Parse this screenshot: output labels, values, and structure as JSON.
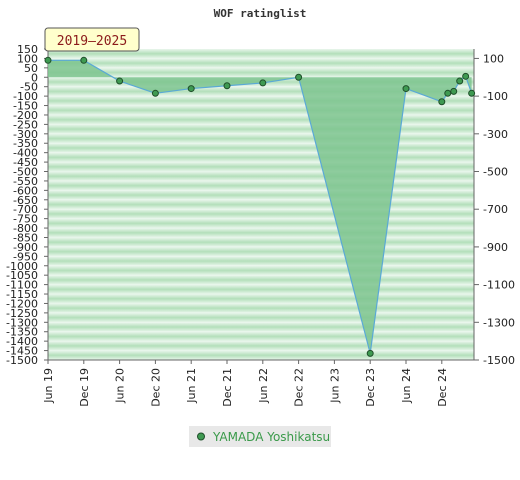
{
  "chart_data": {
    "type": "area",
    "title": "WOF ratinglist",
    "period_label": "2019–2025",
    "x_tick_labels": [
      "Jun 19",
      "Dec 19",
      "Jun 20",
      "Dec 20",
      "Jun 21",
      "Dec 21",
      "Jun 22",
      "Dec 22",
      "Jun 23",
      "Dec 23",
      "Jun 24",
      "Dec 24"
    ],
    "left_axis": {
      "ylim": [
        -1500,
        150
      ],
      "ticks": [
        150,
        100,
        50,
        0,
        -50,
        -100,
        -150,
        -200,
        -250,
        -300,
        -350,
        -400,
        -450,
        -500,
        -550,
        -600,
        -650,
        -700,
        -750,
        -800,
        -850,
        -900,
        -950,
        -1000,
        -1050,
        -1100,
        -1150,
        -1200,
        -1250,
        -1300,
        -1350,
        -1400,
        -1450,
        -1500
      ]
    },
    "right_axis": {
      "ylim": [
        -1500,
        150
      ],
      "ticks": [
        100,
        -100,
        -300,
        -500,
        -700,
        -900,
        -1100,
        -1300,
        -1500
      ]
    },
    "series": [
      {
        "name": "YAMADA Yoshikatsu",
        "points": [
          {
            "x": "2019-06",
            "y": 90
          },
          {
            "x": "2019-12",
            "y": 90
          },
          {
            "x": "2020-06",
            "y": -20
          },
          {
            "x": "2020-12",
            "y": -85
          },
          {
            "x": "2021-06",
            "y": -60
          },
          {
            "x": "2021-12",
            "y": -45
          },
          {
            "x": "2022-06",
            "y": -30
          },
          {
            "x": "2022-12",
            "y": 0
          },
          {
            "x": "2023-12",
            "y": -1465
          },
          {
            "x": "2024-06",
            "y": -60
          },
          {
            "x": "2024-12",
            "y": -130
          },
          {
            "x": "2025-01",
            "y": -85
          },
          {
            "x": "2025-02",
            "y": -75
          },
          {
            "x": "2025-03",
            "y": -20
          },
          {
            "x": "2025-04",
            "y": 5
          },
          {
            "x": "2025-05",
            "y": -85
          }
        ]
      }
    ],
    "grid": true,
    "legend_position": "bottom-center",
    "colors": {
      "fill": "#7ec48f",
      "line": "#5aa9d6",
      "marker": "#3f9a52",
      "band_dark": "#a9d9b1",
      "band_light": "#e7f5ea",
      "legend_text": "#3a9a4a",
      "period_bg": "#ffffcc",
      "period_text": "#8b1a1a"
    }
  }
}
